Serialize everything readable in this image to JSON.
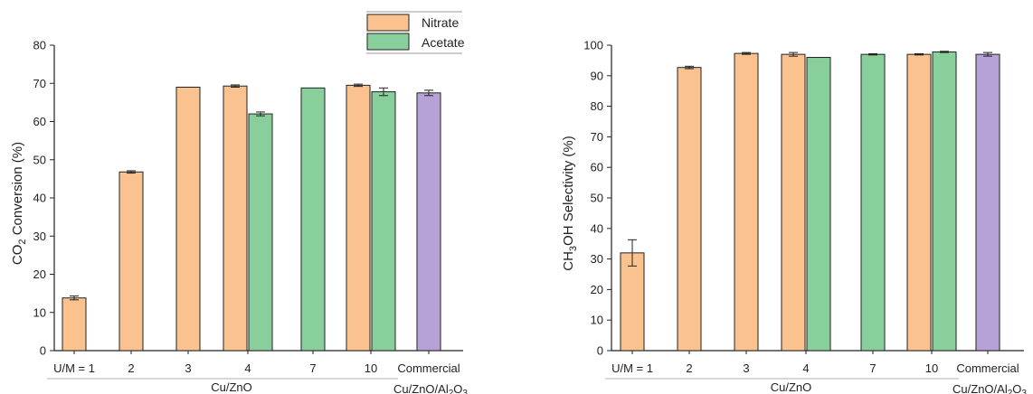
{
  "colors": {
    "nitrate": "#f9c28f",
    "acetate": "#88cf9c",
    "commercial": "#b6a2d6",
    "axis": "#222222"
  },
  "legend": {
    "items": [
      "Nitrate",
      "Acetate"
    ]
  },
  "chart_data": [
    {
      "type": "bar",
      "ylabel": "CO2 Conversion (%)",
      "ylabel_main": "CO",
      "ylabel_sub": "2",
      "ylabel_rest": " Conversion (%)",
      "ylim": [
        0,
        80
      ],
      "yticks": [
        0,
        10,
        20,
        30,
        40,
        50,
        60,
        70,
        80
      ],
      "categories": [
        "U/M = 1",
        "2",
        "3",
        "4",
        "7",
        "10",
        "Commercial"
      ],
      "group_label": "Cu/ZnO",
      "commercial_label": "Cu/ZnO/Al2O3",
      "series": [
        {
          "name": "Nitrate",
          "values": [
            13.8,
            46.8,
            69.0,
            69.3,
            null,
            69.5,
            null
          ],
          "errors": [
            0.5,
            0.3,
            0,
            0.3,
            null,
            0.3,
            null
          ]
        },
        {
          "name": "Acetate",
          "values": [
            null,
            null,
            null,
            62.0,
            68.8,
            67.8,
            null
          ],
          "errors": [
            null,
            null,
            null,
            0.5,
            0,
            1.0,
            null
          ]
        },
        {
          "name": "Commercial",
          "values": [
            null,
            null,
            null,
            null,
            null,
            null,
            67.5
          ],
          "errors": [
            null,
            null,
            null,
            null,
            null,
            null,
            0.7
          ]
        }
      ]
    },
    {
      "type": "bar",
      "ylabel": "CH3OH Selectivity (%)",
      "ylabel_main": "CH",
      "ylabel_sub": "3",
      "ylabel_rest": "OH Selectivity (%)",
      "ylim": [
        0,
        100
      ],
      "yticks": [
        0,
        10,
        20,
        30,
        40,
        50,
        60,
        70,
        80,
        90,
        100
      ],
      "categories": [
        "U/M = 1",
        "2",
        "3",
        "4",
        "7",
        "10",
        "Commercial"
      ],
      "group_label": "Cu/ZnO",
      "commercial_label": "Cu/ZnO/Al2O3",
      "series": [
        {
          "name": "Nitrate",
          "values": [
            32.0,
            92.7,
            97.3,
            97.0,
            null,
            97.0,
            null
          ],
          "errors": [
            4.3,
            0.4,
            0.3,
            0.6,
            null,
            0.2,
            null
          ]
        },
        {
          "name": "Acetate",
          "values": [
            null,
            null,
            null,
            96.0,
            97.0,
            97.8,
            null
          ],
          "errors": [
            null,
            null,
            null,
            0,
            0.2,
            0.2,
            null
          ]
        },
        {
          "name": "Commercial",
          "values": [
            null,
            null,
            null,
            null,
            null,
            null,
            97.0
          ],
          "errors": [
            null,
            null,
            null,
            null,
            null,
            null,
            0.6
          ]
        }
      ]
    }
  ]
}
